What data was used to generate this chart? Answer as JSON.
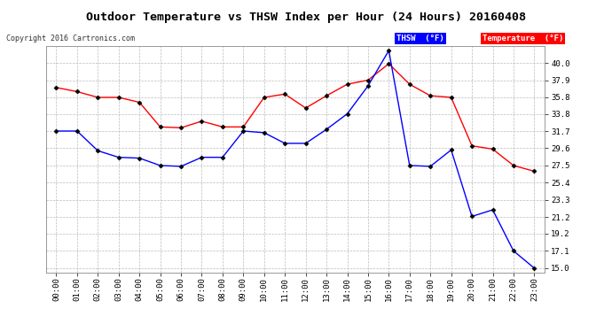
{
  "title": "Outdoor Temperature vs THSW Index per Hour (24 Hours) 20160408",
  "copyright": "Copyright 2016 Cartronics.com",
  "background_color": "#ffffff",
  "plot_bg_color": "#ffffff",
  "grid_color": "#bbbbbb",
  "hours": [
    "00:00",
    "01:00",
    "02:00",
    "03:00",
    "04:00",
    "05:00",
    "06:00",
    "07:00",
    "08:00",
    "09:00",
    "10:00",
    "11:00",
    "12:00",
    "13:00",
    "14:00",
    "15:00",
    "16:00",
    "17:00",
    "18:00",
    "19:00",
    "20:00",
    "21:00",
    "22:00",
    "23:00"
  ],
  "temperature": [
    37.0,
    36.5,
    35.8,
    35.8,
    35.2,
    32.2,
    32.1,
    32.9,
    32.2,
    32.2,
    35.8,
    36.2,
    34.5,
    36.0,
    37.4,
    37.9,
    39.9,
    37.4,
    36.0,
    35.8,
    29.9,
    29.5,
    27.5,
    26.8
  ],
  "thsw": [
    31.7,
    31.7,
    29.3,
    28.5,
    28.4,
    27.5,
    27.4,
    28.5,
    28.5,
    31.7,
    31.5,
    30.2,
    30.2,
    31.9,
    33.8,
    37.2,
    41.5,
    27.5,
    27.4,
    29.4,
    21.3,
    22.1,
    17.1,
    15.0
  ],
  "temp_color": "#ff0000",
  "thsw_color": "#0000ff",
  "marker_color": "#000000",
  "ylim_min": 14.5,
  "ylim_max": 42.0,
  "yticks": [
    15.0,
    17.1,
    19.2,
    21.2,
    23.3,
    25.4,
    27.5,
    29.6,
    31.7,
    33.8,
    35.8,
    37.9,
    40.0
  ],
  "legend_thsw_label": "THSW  (°F)",
  "legend_temp_label": "Temperature  (°F)"
}
